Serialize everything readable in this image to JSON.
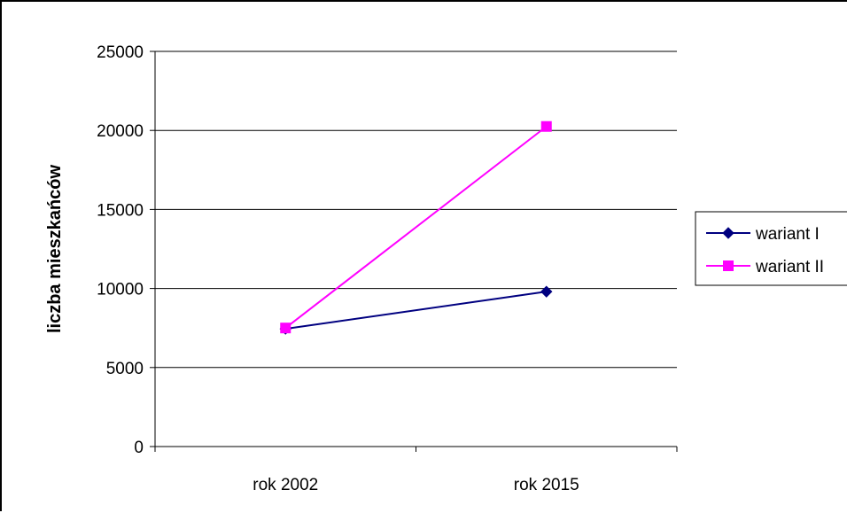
{
  "chart_data": {
    "type": "line",
    "title": "",
    "xlabel": "",
    "ylabel": "liczba mieszkańców",
    "categories": [
      "rok 2002",
      "rok 2015"
    ],
    "ylim": [
      0,
      25000
    ],
    "yticks": [
      0,
      5000,
      10000,
      15000,
      20000,
      25000
    ],
    "grid": true,
    "legend_position": "right",
    "series": [
      {
        "name": "wariant I",
        "values": [
          7450,
          9800
        ],
        "color": "#000080",
        "marker": "diamond"
      },
      {
        "name": "wariant II",
        "values": [
          7500,
          20250
        ],
        "color": "#ff00ff",
        "marker": "square"
      }
    ]
  }
}
